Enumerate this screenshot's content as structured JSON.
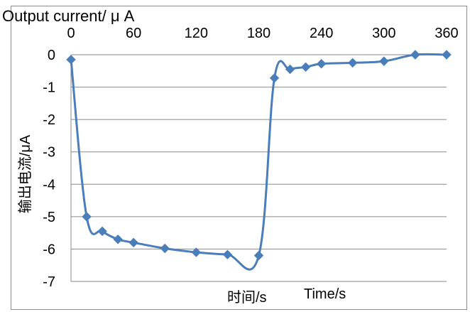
{
  "chart_data": {
    "type": "line",
    "title": "Output current/ μ A",
    "ylabel": "输出电流/μA",
    "xlabel_cn": "时间/s",
    "xlabel_en": "Time/s",
    "x_ticks": [
      "0",
      "60",
      "120",
      "180",
      "240",
      "300",
      "360"
    ],
    "y_ticks": [
      "0",
      "-1",
      "-2",
      "-3",
      "-4",
      "-5",
      "-6",
      "-7"
    ],
    "xlim": [
      0,
      360
    ],
    "ylim": [
      -7,
      0
    ],
    "x_axis_position": "top",
    "grid": "horizontal",
    "legend": "none",
    "series": [
      {
        "x": [
          0,
          15,
          30,
          45,
          60,
          90,
          120,
          150,
          180,
          195,
          210,
          225,
          240,
          270,
          300,
          330,
          360
        ],
        "values": [
          -0.15,
          -5.0,
          -5.45,
          -5.7,
          -5.8,
          -5.98,
          -6.1,
          -6.17,
          -6.2,
          -0.72,
          -0.45,
          -0.38,
          -0.28,
          -0.25,
          -0.2,
          0.0,
          0.0
        ]
      }
    ],
    "color": "#4a7ebb"
  }
}
